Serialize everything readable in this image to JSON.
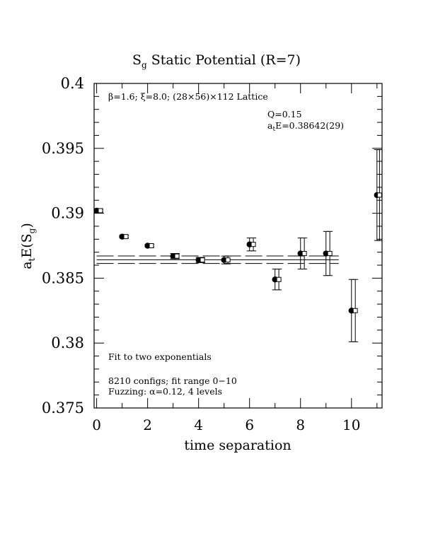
{
  "chart_data": {
    "type": "scatter",
    "title": "S",
    "title_sub": "g",
    "title_rest": " Static Potential (R=7)",
    "ylabel_parts": {
      "a": "a",
      "t": "t",
      "mid": "E(S",
      "g": "g",
      "close": ")"
    },
    "xlabel": "time separation",
    "xlim": [
      -0.1,
      11.2
    ],
    "ylim": [
      0.375,
      0.4
    ],
    "xticks": [
      0,
      2,
      4,
      6,
      8,
      10
    ],
    "xtick_labels": [
      "0",
      "2",
      "4",
      "6",
      "8",
      "10"
    ],
    "yticks": [
      0.375,
      0.38,
      0.385,
      0.39,
      0.395,
      0.4
    ],
    "ytick_labels": [
      "0.375",
      "0.38",
      "0.385",
      "0.39",
      "0.395",
      "0.4"
    ],
    "header_annotation": "β=1.6; ξ=8.0; (28×56)×112 Lattice",
    "Q_label": "Q=0.15",
    "energy_label": {
      "a": "a",
      "t": "t",
      "rest": "E=0.38642(29)"
    },
    "fit_label": "Fit to two exponentials",
    "configs_label": "8210 configs; fit range 0−10",
    "fuzzing_label": "Fuzzing: α=0.12, 4 levels",
    "fit_band": {
      "center": 0.38642,
      "error": 0.00029,
      "x_range": [
        0,
        9.5
      ]
    },
    "series": [
      {
        "marker": "filled-circle",
        "x": [
          0,
          1,
          2,
          3,
          4,
          5,
          6,
          7,
          8,
          9,
          10,
          11
        ],
        "y": [
          0.3902,
          0.3882,
          0.3875,
          0.3867,
          0.3864,
          0.3864,
          0.3876,
          0.3849,
          0.3869,
          0.3869,
          0.3825,
          0.3914
        ],
        "err": [
          0.0001,
          0.0001,
          0.0001,
          0.0002,
          0.0002,
          0.0003,
          0.0005,
          0.0008,
          0.0012,
          0.0017,
          0.0024,
          0.0035
        ]
      },
      {
        "marker": "open-square",
        "x": [
          0.15,
          1.15,
          2.15,
          3.15,
          4.15,
          5.15,
          6.15,
          7.15,
          8.15,
          9.15,
          10.15,
          11.1
        ],
        "y": [
          0.3902,
          0.3882,
          0.3875,
          0.3867,
          0.3864,
          0.3864,
          0.3876,
          0.3849,
          0.3869,
          0.3869,
          0.3825,
          0.3914
        ],
        "err": [
          0.0001,
          0.0001,
          0.0001,
          0.0002,
          0.0002,
          0.0003,
          0.0005,
          0.0008,
          0.0012,
          0.0017,
          0.0024,
          0.0035
        ]
      }
    ]
  }
}
